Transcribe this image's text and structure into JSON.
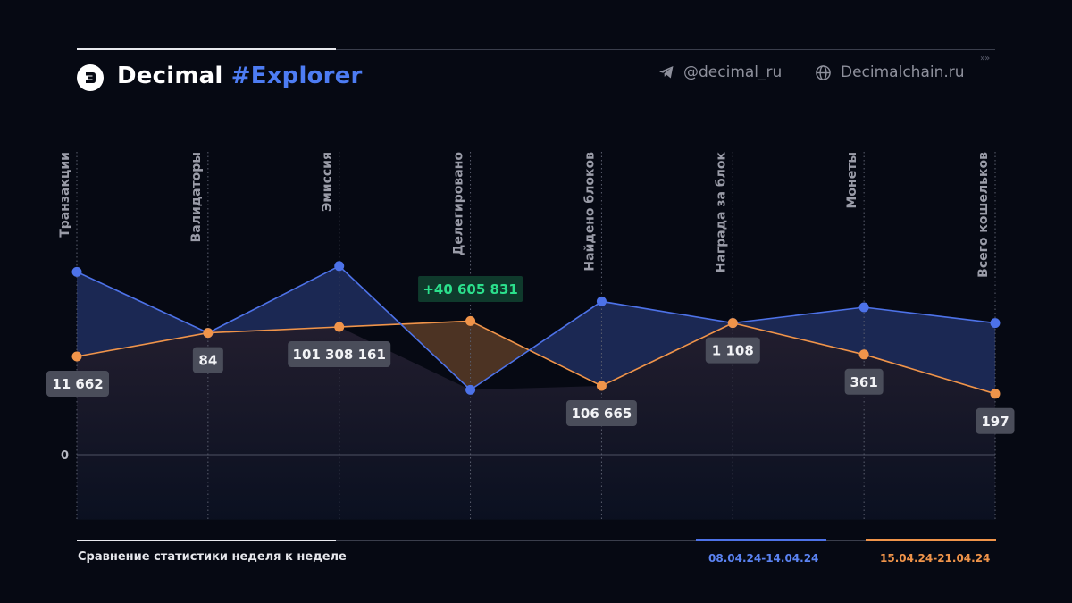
{
  "header": {
    "brand_name": "Decimal",
    "brand_accent": "#Explorer",
    "telegram": "@decimal_ru",
    "website": "Decimalchain.ru",
    "chevrons": "»»"
  },
  "colors": {
    "background": "#060913",
    "week1": "#4d72e8",
    "week2": "#f0944a",
    "delta_badge_text": "#2be08c",
    "label_badge": "#4a4d5a"
  },
  "chart_data": {
    "type": "line",
    "categories": [
      "Транзакции",
      "Валидаторы",
      "Эмиссия",
      "Делегировано",
      "Найдено блоков",
      "Награда за блок",
      "Монеты",
      "Всего кошельков"
    ],
    "series": [
      {
        "name": "08.04.24-14.04.24",
        "values": [
          0.93,
          0.62,
          0.96,
          0.33,
          0.78,
          0.67,
          0.75,
          0.67
        ]
      },
      {
        "name": "15.04.24-21.04.24",
        "values": [
          0.5,
          0.62,
          0.65,
          0.68,
          0.35,
          0.67,
          0.51,
          0.31
        ]
      }
    ],
    "value_labels": [
      "11 662",
      "84",
      "101 308 161",
      "",
      "106 665",
      "1 108",
      "361",
      "197"
    ],
    "delta_annotation": {
      "category": "Делегировано",
      "text": "+40 605 831"
    },
    "ytick_label": "0",
    "ylim": [
      -0.33,
      1.52
    ],
    "grid": "vertical dotted lines per category",
    "legend_position": "bottom-right"
  },
  "footer": {
    "caption": "Сравнение статистики неделя к неделе",
    "legend_week1": "08.04.24-14.04.24",
    "legend_week2": "15.04.24-21.04.24"
  }
}
